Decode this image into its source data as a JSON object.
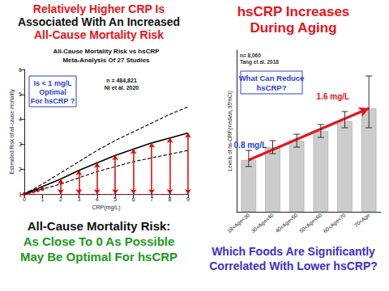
{
  "texts": {
    "left_heading": [
      "Relatively Higher CRP Is",
      "Associated With An Increased",
      "All-Cause Mortality Risk"
    ],
    "left_footer": [
      "All-Cause Mortality Risk:",
      "As Close To 0 As Possible",
      "May Be Optimal For hsCRP"
    ],
    "right_heading": [
      "hsCRP Increases",
      "During Aging"
    ],
    "right_footer": [
      "Which Foods Are Significantly",
      "Correlated With Lower hsCRP?"
    ]
  },
  "chart_data": [
    {
      "type": "line",
      "title": "All-Cause Mortality Risk vs hsCRP",
      "subtitle": "Meta-Analysis Of 27 Studies",
      "notes": [
        "n = 484,821",
        "Ni et al. 2020"
      ],
      "callout": [
        "Is < 1 mg/L",
        "Optimal",
        "For hsCRP ?"
      ],
      "xlabel": "CRP(mg/L)",
      "ylabel": "Estimated Risk of all-cause mortality",
      "x": [
        0,
        0.25,
        0.5,
        0.75,
        1,
        2,
        3,
        4,
        5,
        6,
        7,
        8,
        9
      ],
      "series": [
        {
          "type": "line",
          "color": "#000000",
          "line_style": "solid",
          "values": [
            1.0,
            1.08,
            1.15,
            1.22,
            1.3,
            1.6,
            1.95,
            2.25,
            2.55,
            2.8,
            3.05,
            3.25,
            3.45
          ]
        },
        {
          "type": "line",
          "color": "#000000",
          "line_style": "dashed",
          "values": [
            1.0,
            1.1,
            1.2,
            1.3,
            1.4,
            1.85,
            2.3,
            2.75,
            3.15,
            3.5,
            3.85,
            4.2,
            4.5
          ]
        },
        {
          "type": "line",
          "color": "#000000",
          "line_style": "dashed",
          "values": [
            1.0,
            1.05,
            1.1,
            1.15,
            1.2,
            1.4,
            1.65,
            1.9,
            2.1,
            2.3,
            2.45,
            2.6,
            2.75
          ]
        },
        {
          "type": "scatter",
          "color": "#e00000",
          "marker": "circle",
          "values": [
            1.0,
            1.05,
            1.1,
            1.15,
            1.2,
            null,
            null,
            null,
            null,
            null,
            null,
            null,
            null
          ]
        },
        {
          "type": "arrow",
          "color": "#e00000",
          "values": [
            null,
            null,
            null,
            null,
            null,
            1.6,
            1.95,
            2.25,
            2.55,
            2.8,
            3.05,
            3.25,
            3.45
          ]
        }
      ],
      "reference_line": {
        "value": 1,
        "color": "#e00000",
        "line_style": "dashed"
      },
      "xlim": [
        0,
        9
      ],
      "xticks": [
        0,
        1,
        2,
        3,
        4,
        5,
        6,
        7,
        8,
        9
      ],
      "ylim": [
        1,
        6
      ],
      "yticks": [
        1,
        2,
        3,
        4,
        5,
        6
      ],
      "grid": false
    },
    {
      "type": "bar",
      "notes": [
        "n= 8,060",
        "Tang et al. 2018"
      ],
      "callout": [
        "What Can Reduce",
        "hsCRP?"
      ],
      "point_labels": {
        "first": "0.8 mg/L",
        "last": "1.6 mg/L"
      },
      "ylabel": "Levels of hs-CRP(median, 95%CI)",
      "categories": [
        "18<Age<30",
        "30<Age<40",
        "40<Age<50",
        "50<Age<60",
        "60<Age<70",
        "70<Age"
      ],
      "values": [
        0.8,
        1.0,
        1.1,
        1.25,
        1.4,
        1.6
      ],
      "ci_low": [
        0.7,
        0.9,
        1.0,
        1.15,
        1.3,
        1.3
      ],
      "ci_high": [
        0.95,
        1.1,
        1.2,
        1.35,
        1.55,
        2.1
      ],
      "color": "#cccccc",
      "ylim": [
        0,
        2.5
      ],
      "tick_labels": "x",
      "grid": false
    }
  ]
}
